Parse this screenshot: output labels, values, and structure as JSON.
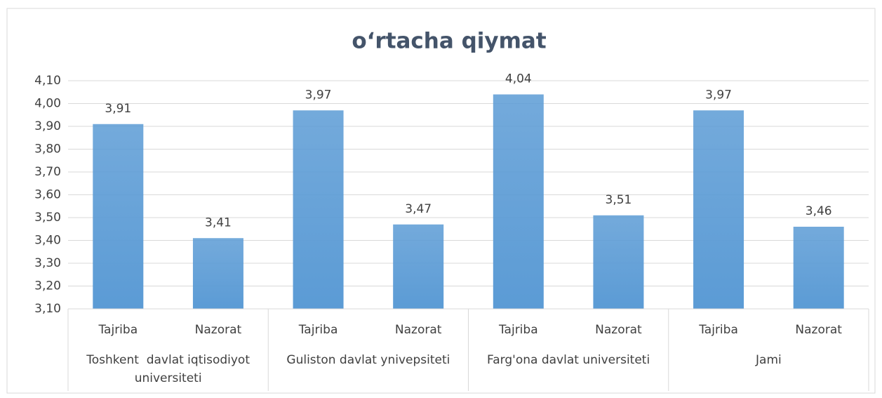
{
  "chart_data": {
    "type": "bar",
    "title": "o‘rtacha qiymat",
    "categories": [
      "Tajriba",
      "Nazorat",
      "Tajriba",
      "Nazorat",
      "Tajriba",
      "Nazorat",
      "Tajriba",
      "Nazorat"
    ],
    "groups": [
      "Toshkent  davlat iqtisodiyot universiteti",
      "Guliston davlat ynivepsiteti",
      "Farg'ona davlat universiteti",
      "Jami"
    ],
    "values": [
      3.91,
      3.41,
      3.97,
      3.47,
      4.04,
      3.51,
      3.97,
      3.46
    ],
    "value_labels": [
      "3,91",
      "3,41",
      "3,97",
      "3,47",
      "4,04",
      "3,51",
      "3,97",
      "3,46"
    ],
    "color": "#5b9bd5",
    "ylim": [
      3.1,
      4.1
    ],
    "yticks": [
      {
        "value": 3.1,
        "label": "3,10"
      },
      {
        "value": 3.2,
        "label": "3,20"
      },
      {
        "value": 3.3,
        "label": "3,30"
      },
      {
        "value": 3.4,
        "label": "3,40"
      },
      {
        "value": 3.5,
        "label": "3,50"
      },
      {
        "value": 3.6,
        "label": "3,60"
      },
      {
        "value": 3.7,
        "label": "3,70"
      },
      {
        "value": 3.8,
        "label": "3,80"
      },
      {
        "value": 3.9,
        "label": "3,90"
      },
      {
        "value": 4.0,
        "label": "4,00"
      },
      {
        "value": 4.1,
        "label": "4,10"
      }
    ],
    "grid": true
  }
}
